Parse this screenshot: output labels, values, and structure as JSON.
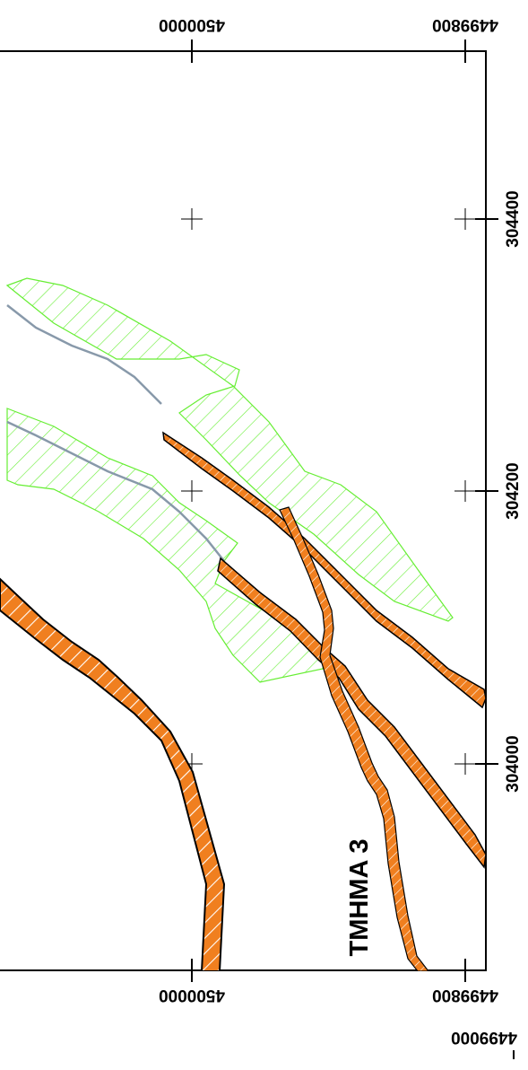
{
  "map": {
    "y_top_labels": [
      "4500000",
      "4499800"
    ],
    "y_bottom_labels": [
      "4500000",
      "4499800"
    ],
    "x_labels": [
      "304400",
      "304200",
      "304000"
    ],
    "corner_label": "4499000",
    "section_label": "TMHMA 3"
  },
  "colors": {
    "frame": "#000000",
    "road_fill": "#f07f1f",
    "road_outline": "#000000",
    "road_stripe": "#ffffff",
    "zone_hatch": "#66ee33",
    "centerline": "#8899aa"
  }
}
